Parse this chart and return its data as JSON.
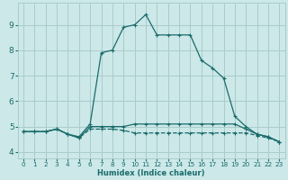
{
  "xlabel": "Humidex (Indice chaleur)",
  "ylabel": "",
  "background_color": "#cce8e8",
  "grid_color": "#aacccc",
  "line_color": "#1a6b6b",
  "xlim": [
    -0.5,
    23.5
  ],
  "ylim": [
    3.75,
    9.85
  ],
  "xticks": [
    0,
    1,
    2,
    3,
    4,
    5,
    6,
    7,
    8,
    9,
    10,
    11,
    12,
    13,
    14,
    15,
    16,
    17,
    18,
    19,
    20,
    21,
    22,
    23
  ],
  "yticks": [
    4,
    5,
    6,
    7,
    8,
    9
  ],
  "line1_x": [
    0,
    1,
    2,
    3,
    4,
    5,
    6,
    7,
    8,
    9,
    10,
    11,
    12,
    13,
    14,
    15,
    16,
    17,
    18,
    19,
    20,
    21,
    22,
    23
  ],
  "line1_y": [
    4.8,
    4.8,
    4.8,
    4.9,
    4.7,
    4.6,
    5.1,
    7.9,
    8.0,
    8.9,
    9.0,
    9.4,
    8.6,
    8.6,
    8.6,
    8.6,
    7.6,
    7.3,
    6.9,
    5.4,
    5.0,
    4.7,
    4.6,
    4.4
  ],
  "line2_x": [
    0,
    1,
    2,
    3,
    4,
    5,
    6,
    7,
    8,
    9,
    10,
    11,
    12,
    13,
    14,
    15,
    16,
    17,
    18,
    19,
    20,
    21,
    22,
    23
  ],
  "line2_y": [
    4.8,
    4.8,
    4.8,
    4.9,
    4.7,
    4.55,
    5.0,
    5.0,
    5.0,
    5.0,
    5.1,
    5.1,
    5.1,
    5.1,
    5.1,
    5.1,
    5.1,
    5.1,
    5.1,
    5.1,
    4.9,
    4.7,
    4.6,
    4.4
  ],
  "line3_x": [
    0,
    1,
    2,
    3,
    4,
    5,
    6,
    7,
    8,
    9,
    10,
    11,
    12,
    13,
    14,
    15,
    16,
    17,
    18,
    19,
    20,
    21,
    22,
    23
  ],
  "line3_y": [
    4.8,
    4.8,
    4.8,
    4.9,
    4.7,
    4.55,
    4.9,
    4.9,
    4.9,
    4.85,
    4.75,
    4.75,
    4.75,
    4.75,
    4.75,
    4.75,
    4.75,
    4.75,
    4.75,
    4.75,
    4.75,
    4.65,
    4.55,
    4.4
  ],
  "xlabel_fontsize": 6.0,
  "ytick_fontsize": 6.5,
  "xtick_fontsize": 5.2
}
